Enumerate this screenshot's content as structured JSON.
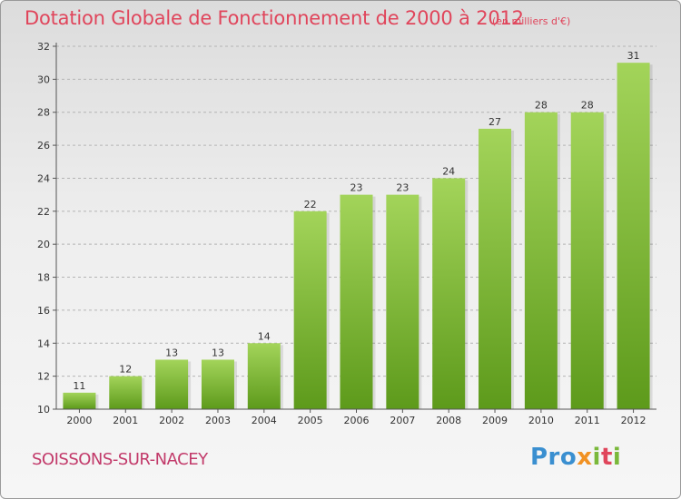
{
  "header": {
    "title": "Dotation Globale de Fonctionnement de 2000 à 2012",
    "subtitle": "(en milliers d'€)"
  },
  "commune": "SOISSONS-SUR-NACEY",
  "logo": {
    "text": "Proxiti",
    "colors": [
      "#3a8fd0",
      "#f19122",
      "#7ab83a",
      "#e0455b"
    ]
  },
  "chart_data": {
    "type": "bar",
    "title": "Dotation Globale de Fonctionnement de 2000 à 2012",
    "subtitle": "(en milliers d'€)",
    "categories": [
      "2000",
      "2001",
      "2002",
      "2003",
      "2004",
      "2005",
      "2006",
      "2007",
      "2008",
      "2009",
      "2010",
      "2011",
      "2012"
    ],
    "values": [
      11,
      12,
      13,
      13,
      14,
      22,
      23,
      23,
      24,
      27,
      28,
      28,
      31
    ],
    "ylim": [
      10,
      32
    ],
    "yticks": [
      10,
      12,
      14,
      16,
      18,
      20,
      22,
      24,
      26,
      28,
      30,
      32
    ],
    "grid": true,
    "bar_color_top": "#a3d45a",
    "bar_color_bottom": "#5d9a1b",
    "axis_color": "#555555",
    "grid_color": "#b4b4b4"
  }
}
